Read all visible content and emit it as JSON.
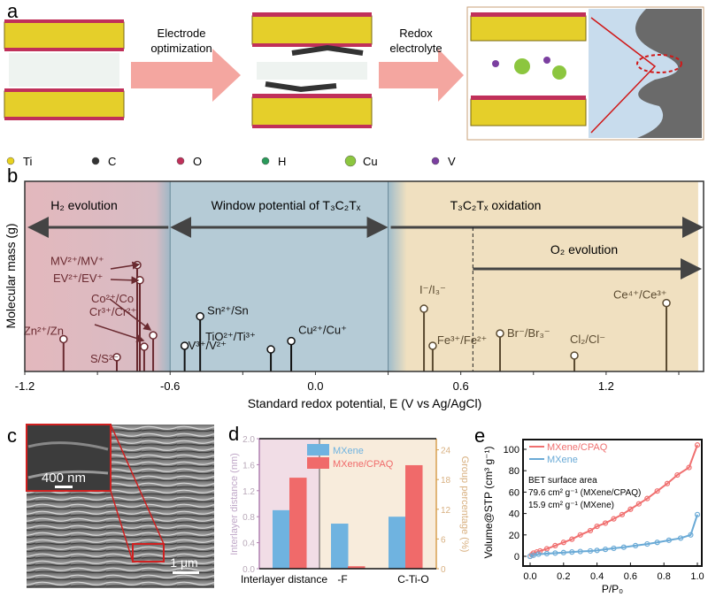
{
  "panel_letters": {
    "a": "a",
    "b": "b",
    "c": "c",
    "d": "d",
    "e": "e"
  },
  "panel_a": {
    "step1_label_line1": "Electrode",
    "step1_label_line2": "optimization",
    "step2_label_line1": "Redox",
    "step2_label_line2": "electrolyte",
    "legend": [
      {
        "label": "Ti",
        "color": "#e8d21e"
      },
      {
        "label": "C",
        "color": "#333333"
      },
      {
        "label": "O",
        "color": "#c0305a"
      },
      {
        "label": "H",
        "color": "#2a9a5a"
      },
      {
        "label": "Cu",
        "color": "#8cc63f"
      },
      {
        "label": "V",
        "color": "#7b3fa0"
      }
    ]
  },
  "panel_c": {
    "scale_inset": "400 nm",
    "scale_main": "1 μm"
  },
  "chart_data": [
    {
      "type": "scatter",
      "title": "",
      "xlabel": "Standard redox potential, E (V vs Ag/AgCl)",
      "ylabel": "Molecular mass (g)",
      "xlim": [
        -1.2,
        1.58
      ],
      "ylim": [
        0,
        100
      ],
      "xticks": [
        "-1.2",
        "-0.6",
        "0.0",
        "0.6",
        "1.2"
      ],
      "regions": [
        {
          "label": "H₂ evolution",
          "from": -1.2,
          "to": -0.6,
          "color": "#e3b8bd"
        },
        {
          "label": "Window potential of T₃C₂Tₓ",
          "from": -0.6,
          "to": 0.3,
          "color": "#b5cbd6"
        },
        {
          "label": "T₃C₂Tₓ oxidation",
          "from": 0.3,
          "to": 1.58,
          "color": "#f0e0c0"
        }
      ],
      "o2_label": "O₂ evolution",
      "o2_onset": 0.65,
      "points": [
        {
          "label": "Zn²⁺/Zn",
          "E": -1.04,
          "mass": 17,
          "side": "low"
        },
        {
          "label": "S/S²⁻",
          "E": -0.82,
          "mass": 7.5,
          "side": "low"
        },
        {
          "label": "MV²⁺/MV⁺",
          "E": -0.736,
          "mass": 56,
          "side": "low"
        },
        {
          "label": "EV²⁺/EV⁺",
          "E": -0.725,
          "mass": 48,
          "side": "low"
        },
        {
          "label": "Cr³⁺/Cr²⁺",
          "E": -0.707,
          "mass": 13,
          "side": "low"
        },
        {
          "label": "Co²⁺/Co",
          "E": -0.67,
          "mass": 19,
          "side": "low"
        },
        {
          "label": "V³⁺/V²⁺",
          "E": -0.54,
          "mass": 13.5,
          "side": "mid"
        },
        {
          "label": "Sn²⁺/Sn",
          "E": -0.476,
          "mass": 29,
          "side": "mid"
        },
        {
          "label": "TiO²⁺/Ti³⁺",
          "E": -0.184,
          "mass": 11.6,
          "side": "mid"
        },
        {
          "label": "Cu²⁺/Cu⁺",
          "E": -0.1,
          "mass": 16,
          "side": "mid"
        },
        {
          "label": "I⁻/I₃⁻",
          "E": 0.448,
          "mass": 33,
          "side": "high"
        },
        {
          "label": "Fe³⁺/Fe²⁺",
          "E": 0.484,
          "mass": 13.5,
          "side": "high"
        },
        {
          "label": "Br⁻/Br₃⁻",
          "E": 0.762,
          "mass": 20,
          "side": "high"
        },
        {
          "label": "Cl₂/Cl⁻",
          "E": 1.069,
          "mass": 8.4,
          "side": "high"
        },
        {
          "label": "Ce⁴⁺/Ce³⁺",
          "E": 1.449,
          "mass": 36,
          "side": "high"
        }
      ]
    },
    {
      "type": "bar",
      "categories": [
        "Interlayer distance",
        "-F",
        "C-Ti-O"
      ],
      "ylabel_left": "Interlayer distance (nm)",
      "ylabel_right": "Group percentage (%)",
      "ylim_left": [
        0,
        2.0
      ],
      "ylim_right": [
        0,
        26.25
      ],
      "yticks_left": [
        "0.0",
        "0.4",
        "0.8",
        "1.2",
        "1.6",
        "2.0"
      ],
      "yticks_right": [
        "0",
        "6",
        "12",
        "18",
        "24"
      ],
      "series": [
        {
          "name": "MXene",
          "color": "#6fb3e0",
          "values": [
            0.9,
            9.1,
            10.5
          ],
          "axes": [
            "left",
            "right",
            "right"
          ]
        },
        {
          "name": "MXene/C_PAQ",
          "color": "#f06a6a",
          "values": [
            1.4,
            0.5,
            20.9
          ],
          "axes": [
            "left",
            "right",
            "right"
          ]
        }
      ],
      "legend_labels": [
        "MXene",
        "MXene/CPAQ"
      ]
    },
    {
      "type": "line",
      "xlabel": "P/P₀",
      "ylabel": "Volume@STP (cm³ g⁻¹)",
      "xlim": [
        0,
        1.0
      ],
      "ylim": [
        -8,
        110
      ],
      "xticks": [
        "0.0",
        "0.2",
        "0.4",
        "0.6",
        "0.8",
        "1.0"
      ],
      "yticks": [
        "0",
        "20",
        "40",
        "60",
        "80",
        "100"
      ],
      "annotation": [
        "BET surface area",
        "79.6 cm² g⁻¹ (MXene/CPAQ)",
        "15.9 cm² g⁻¹ (MXene)"
      ],
      "series": [
        {
          "name": "MXene/CPAQ",
          "color": "#f07070",
          "x": [
            0,
            0.01,
            0.02,
            0.04,
            0.06,
            0.1,
            0.15,
            0.2,
            0.25,
            0.3,
            0.36,
            0.4,
            0.45,
            0.5,
            0.55,
            0.6,
            0.65,
            0.7,
            0.76,
            0.82,
            0.88,
            0.95,
            1.0
          ],
          "y": [
            0,
            1.5,
            3,
            4,
            5,
            7,
            10,
            13,
            16,
            20,
            24,
            28,
            31,
            35,
            39,
            44,
            49,
            54,
            61,
            68,
            76,
            83,
            104
          ]
        },
        {
          "name": "MXene",
          "color": "#6aaad6",
          "x": [
            0,
            0.02,
            0.05,
            0.1,
            0.15,
            0.2,
            0.25,
            0.3,
            0.36,
            0.4,
            0.45,
            0.5,
            0.56,
            0.63,
            0.7,
            0.76,
            0.83,
            0.9,
            0.96,
            1.0
          ],
          "y": [
            0,
            1,
            2,
            2.5,
            3,
            3.5,
            4,
            4.5,
            5,
            5.5,
            6.5,
            7.5,
            8.5,
            10,
            11.5,
            13,
            15,
            17,
            20,
            39
          ]
        }
      ]
    }
  ]
}
